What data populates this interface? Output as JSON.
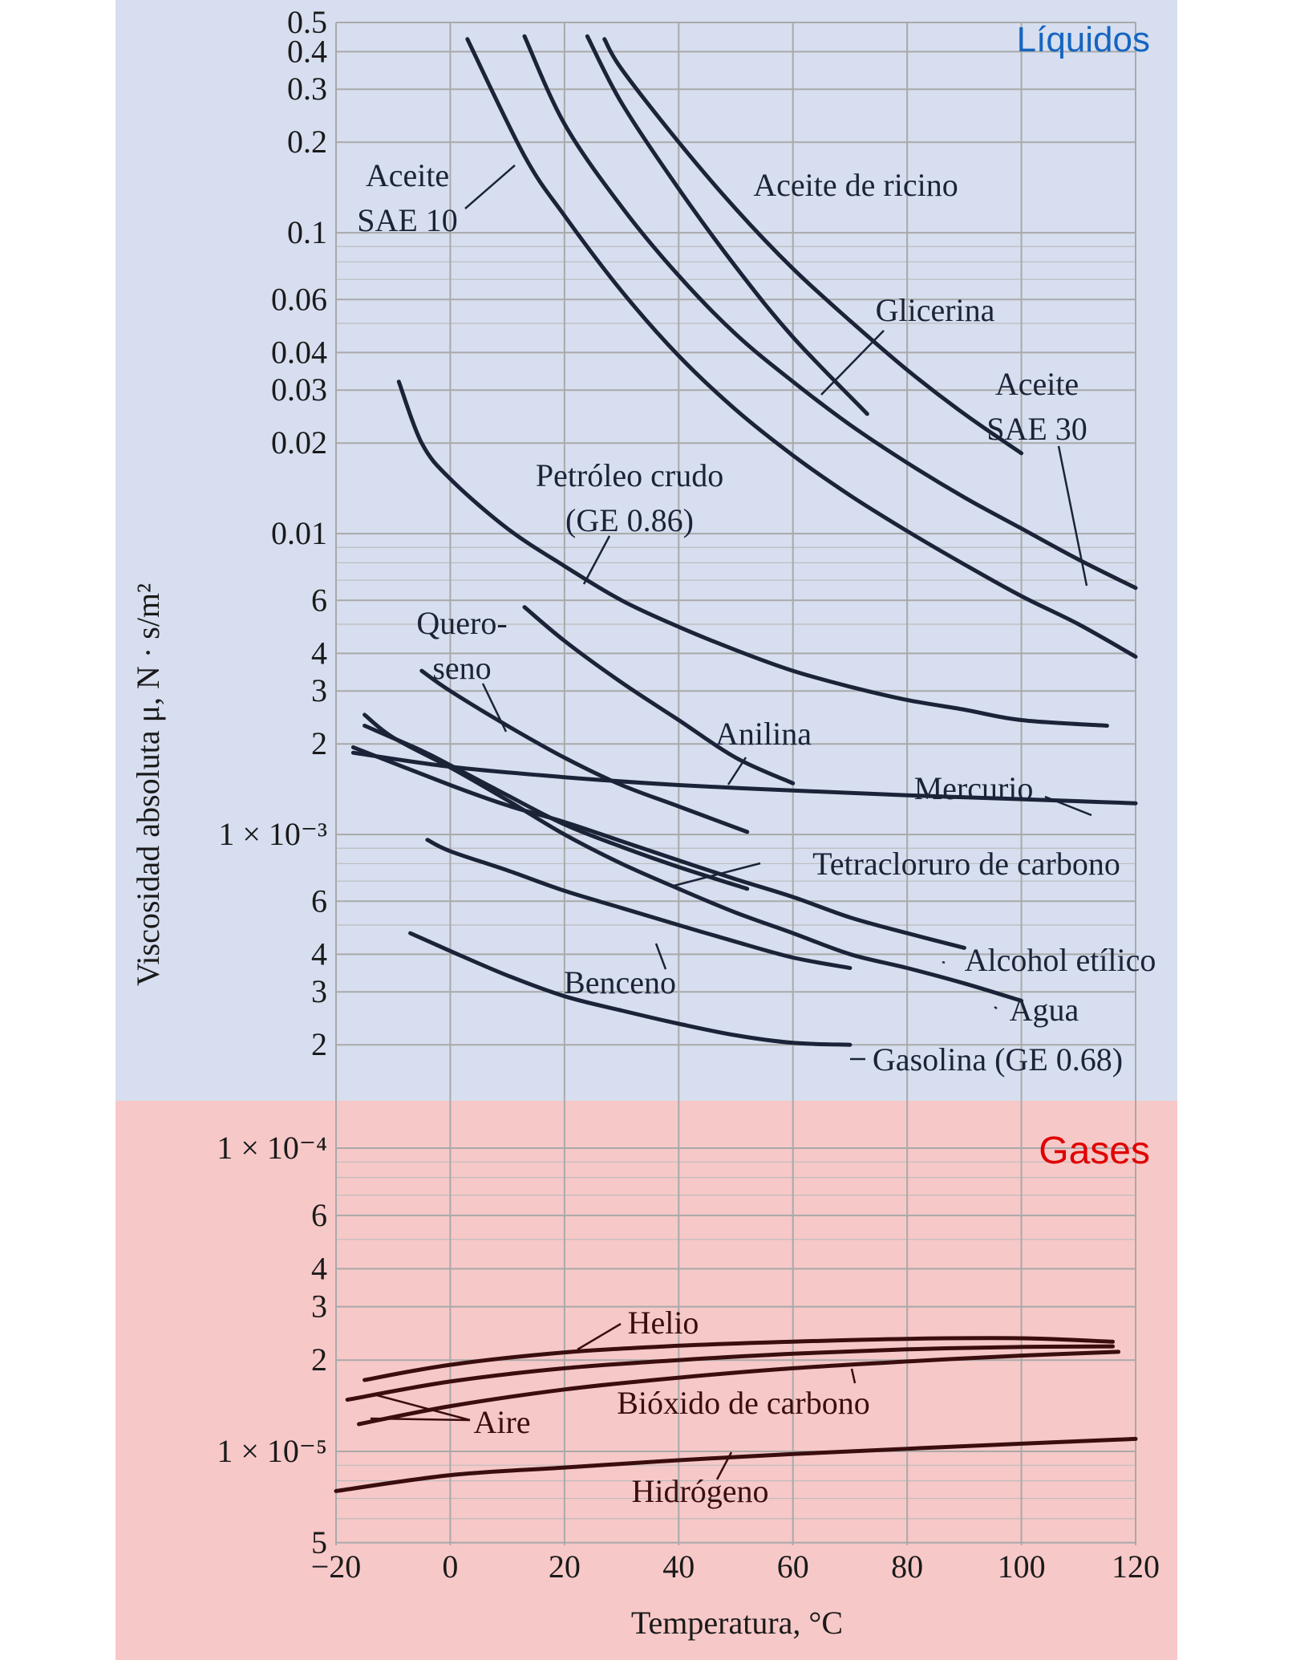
{
  "colors": {
    "liquids_panel": "#d6deef",
    "gases_panel": "#f7c8c8",
    "liquids_curve": "#1b2338",
    "gases_curve": "#3a0e0e",
    "liquids_title": "#1565c0",
    "gases_title": "#e00000"
  },
  "sections": {
    "liquids": "Líquidos",
    "gases": "Gases"
  },
  "chart_data": {
    "type": "line",
    "xlabel": "Temperatura, °C",
    "ylabel": "Viscosidad absoluta μ, N · s/m²",
    "xlim": [
      -20,
      120
    ],
    "ylim_liquids": [
      0.00018,
      0.5
    ],
    "ylim_gases": [
      5e-06,
      0.0001
    ],
    "y_scale": "log",
    "grid": true,
    "x_ticks": [
      "−20",
      "0",
      "20",
      "40",
      "60",
      "80",
      "100",
      "120"
    ],
    "y_ticks_liquids": [
      "0.5",
      "0.4",
      "0.3",
      "0.2",
      "0.1",
      "0.06",
      "0.04",
      "0.03",
      "0.02",
      "0.01",
      "6",
      "4",
      "3",
      "2",
      "1 × 10⁻³",
      "6",
      "4",
      "3",
      "2"
    ],
    "y_ticks_gases": [
      "1 × 10⁻⁴",
      "6",
      "4",
      "3",
      "2",
      "1 × 10⁻⁵",
      "5"
    ],
    "series": [
      {
        "name": "Aceite SAE 10",
        "group": "liquids",
        "x": [
          3,
          13,
          20,
          30,
          40,
          50,
          60,
          70,
          80,
          90,
          100,
          110,
          120
        ],
        "y": [
          0.44,
          0.18,
          0.114,
          0.064,
          0.039,
          0.0258,
          0.0182,
          0.0134,
          0.0102,
          0.0079,
          0.0062,
          0.005,
          0.0039
        ]
      },
      {
        "name": "Petróleo crudo (GE 0.86)",
        "group": "liquids",
        "x": [
          -9,
          -5,
          0,
          10,
          20,
          30,
          40,
          50,
          60,
          70,
          80,
          90,
          100,
          115
        ],
        "y": [
          0.032,
          0.02,
          0.0152,
          0.0104,
          0.0078,
          0.006,
          0.0049,
          0.0041,
          0.0035,
          0.0031,
          0.0028,
          0.0026,
          0.0024,
          0.0023
        ]
      },
      {
        "name": "Aceite SAE 30",
        "group": "liquids",
        "x": [
          13,
          20,
          30,
          40,
          50,
          60,
          70,
          80,
          90,
          100,
          110,
          120
        ],
        "y": [
          0.45,
          0.23,
          0.122,
          0.072,
          0.046,
          0.032,
          0.023,
          0.0172,
          0.0132,
          0.0104,
          0.0082,
          0.0066
        ]
      },
      {
        "name": "Glicerina",
        "group": "liquids",
        "x": [
          24,
          30,
          40,
          50,
          60,
          73
        ],
        "y": [
          0.45,
          0.27,
          0.14,
          0.077,
          0.045,
          0.025
        ]
      },
      {
        "name": "Aceite de ricino",
        "group": "liquids",
        "x": [
          27,
          30,
          40,
          50,
          60,
          70,
          80,
          90,
          100
        ],
        "y": [
          0.44,
          0.35,
          0.2,
          0.12,
          0.076,
          0.051,
          0.035,
          0.025,
          0.0185
        ]
      },
      {
        "name": "Anilina",
        "group": "liquids",
        "x": [
          13,
          20,
          30,
          40,
          50,
          60
        ],
        "y": [
          0.0057,
          0.0044,
          0.0032,
          0.0024,
          0.0018,
          0.00148
        ]
      },
      {
        "name": "Querosoeno",
        "group": "liquids",
        "x": [
          -5,
          0,
          10,
          20,
          30,
          40,
          52
        ],
        "y": [
          0.0035,
          0.003,
          0.0023,
          0.0018,
          0.00146,
          0.00124,
          0.00102
        ]
      },
      {
        "name": "Mercurio",
        "group": "liquids",
        "x": [
          -17,
          0,
          20,
          40,
          60,
          80,
          100,
          110,
          120
        ],
        "y": [
          0.00187,
          0.00168,
          0.00155,
          0.00146,
          0.0014,
          0.00135,
          0.00131,
          0.00129,
          0.00127
        ]
      },
      {
        "name": "Tetracloruro de carbono",
        "group": "liquids",
        "x": [
          -15,
          -5,
          0,
          10,
          20,
          30,
          40,
          52
        ],
        "y": [
          0.0023,
          0.0019,
          0.0017,
          0.00135,
          0.00108,
          0.00091,
          0.00078,
          0.00066
        ]
      },
      {
        "name": "Alcohol etílico",
        "group": "liquids",
        "x": [
          -17,
          0,
          10,
          20,
          30,
          40,
          50,
          60,
          70,
          80,
          90
        ],
        "y": [
          0.00195,
          0.00146,
          0.00125,
          0.0011,
          0.00095,
          0.00082,
          0.00071,
          0.00062,
          0.00053,
          0.00047,
          0.00042
        ]
      },
      {
        "name": "Agua",
        "group": "liquids",
        "x": [
          -15,
          -10,
          0,
          10,
          20,
          30,
          40,
          50,
          60,
          70,
          80,
          90,
          100
        ],
        "y": [
          0.0025,
          0.0021,
          0.00167,
          0.0013,
          0.001,
          0.0008,
          0.00066,
          0.00055,
          0.00047,
          0.0004,
          0.00036,
          0.00032,
          0.00028
        ]
      },
      {
        "name": "Benceno",
        "group": "liquids",
        "x": [
          -4,
          0,
          10,
          20,
          30,
          40,
          50,
          60,
          70
        ],
        "y": [
          0.00096,
          0.00088,
          0.00076,
          0.00065,
          0.00057,
          0.0005,
          0.00044,
          0.00039,
          0.00036
        ]
      },
      {
        "name": "Gasolina (GE 0.68)",
        "group": "liquids",
        "x": [
          -7,
          0,
          10,
          20,
          30,
          40,
          50,
          60,
          70
        ],
        "y": [
          0.00047,
          0.00041,
          0.00034,
          0.00029,
          0.00026,
          0.000235,
          0.000215,
          0.000203,
          0.0002
        ]
      },
      {
        "name": "Helio",
        "group": "gases",
        "x": [
          -15,
          0,
          20,
          40,
          60,
          80,
          100,
          116
        ],
        "y": [
          1.72e-05,
          1.93e-05,
          2.12e-05,
          2.23e-05,
          2.3e-05,
          2.35e-05,
          2.36e-05,
          2.3e-05
        ]
      },
      {
        "name": "Aire",
        "group": "gases",
        "x": [
          -18,
          0,
          20,
          40,
          60,
          80,
          100,
          116
        ],
        "y": [
          1.48e-05,
          1.7e-05,
          1.88e-05,
          2e-05,
          2.1e-05,
          2.17e-05,
          2.21e-05,
          2.22e-05
        ]
      },
      {
        "name": "Bióxido de carbono",
        "group": "gases",
        "x": [
          -16,
          0,
          20,
          40,
          60,
          80,
          100,
          117
        ],
        "y": [
          1.23e-05,
          1.41e-05,
          1.6e-05,
          1.75e-05,
          1.88e-05,
          1.98e-05,
          2.07e-05,
          2.13e-05
        ]
      },
      {
        "name": "Hidrógeno",
        "group": "gases",
        "x": [
          -20,
          0,
          20,
          40,
          60,
          80,
          100,
          120
        ],
        "y": [
          7.4e-06,
          8.35e-06,
          8.85e-06,
          9.35e-06,
          9.8e-06,
          1.02e-05,
          1.06e-05,
          1.1e-05
        ]
      }
    ]
  },
  "labels": [
    {
      "lines": [
        "Aceite",
        "SAE 10"
      ],
      "group": "liquids"
    },
    {
      "lines": [
        "Aceite de ricino"
      ],
      "group": "liquids"
    },
    {
      "lines": [
        "Glicerina"
      ],
      "group": "liquids"
    },
    {
      "lines": [
        "Aceite",
        "SAE 30"
      ],
      "group": "liquids"
    },
    {
      "lines": [
        "Petróleo crudo",
        "(GE 0.86)"
      ],
      "group": "liquids"
    },
    {
      "lines": [
        "Quero-",
        "seno"
      ],
      "group": "liquids"
    },
    {
      "lines": [
        "Anilina"
      ],
      "group": "liquids"
    },
    {
      "lines": [
        "Mercurio"
      ],
      "group": "liquids"
    },
    {
      "lines": [
        "Tetracloruro de carbono"
      ],
      "group": "liquids"
    },
    {
      "lines": [
        "Alcohol etílico"
      ],
      "group": "liquids"
    },
    {
      "lines": [
        "Benceno"
      ],
      "group": "liquids"
    },
    {
      "lines": [
        "Agua"
      ],
      "group": "liquids"
    },
    {
      "lines": [
        "Gasolina (GE 0.68)"
      ],
      "group": "liquids"
    },
    {
      "lines": [
        "Helio"
      ],
      "group": "gases"
    },
    {
      "lines": [
        "Bióxido de carbono"
      ],
      "group": "gases"
    },
    {
      "lines": [
        "Aire"
      ],
      "group": "gases"
    },
    {
      "lines": [
        "Hidrógeno"
      ],
      "group": "gases"
    }
  ]
}
